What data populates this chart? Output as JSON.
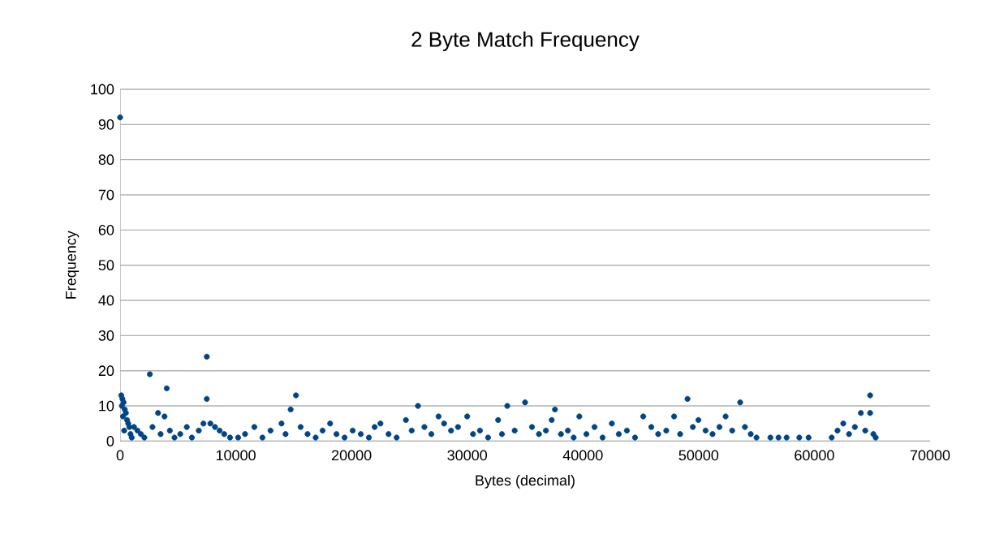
{
  "chart_data": {
    "type": "scatter",
    "title": "2 Byte Match Frequency",
    "xlabel": "Bytes (decimal)",
    "ylabel": "Frequency",
    "xlim": [
      0,
      70000
    ],
    "xticks": [
      0,
      10000,
      20000,
      30000,
      40000,
      50000,
      60000,
      70000
    ],
    "ylim": [
      0,
      100
    ],
    "yticks": [
      0,
      10,
      20,
      30,
      40,
      50,
      60,
      70,
      80,
      90,
      100
    ],
    "grid": "y",
    "marker": "circle",
    "series": [
      {
        "color": "#004586",
        "x": [
          0,
          100,
          200,
          300,
          150,
          400,
          500,
          250,
          600,
          700,
          800,
          350,
          900,
          1000,
          1200,
          1500,
          1800,
          2100,
          2570,
          2800,
          3280,
          3840,
          4030,
          3500,
          4300,
          4700,
          5200,
          5760,
          6200,
          6800,
          7200,
          7490,
          7490,
          7800,
          8200,
          8600,
          9000,
          9500,
          10200,
          10800,
          11600,
          12300,
          13000,
          13950,
          14300,
          14740,
          15200,
          15600,
          16200,
          16900,
          17500,
          18150,
          18700,
          19400,
          20100,
          20800,
          21500,
          22000,
          22500,
          23200,
          23900,
          24700,
          25200,
          25740,
          26300,
          26900,
          27520,
          28000,
          28600,
          29200,
          30000,
          30500,
          31100,
          31800,
          32670,
          33000,
          33460,
          34100,
          35000,
          35600,
          36200,
          36800,
          37300,
          37580,
          38100,
          38700,
          39200,
          39690,
          40300,
          41000,
          41700,
          42500,
          43100,
          43800,
          44500,
          45210,
          45910,
          46500,
          47200,
          47880,
          48400,
          49040,
          49500,
          49980,
          50600,
          51200,
          51800,
          52330,
          52900,
          53590,
          54000,
          54500,
          55000,
          56200,
          56900,
          57600,
          58700,
          59500,
          61500,
          62000,
          62500,
          63000,
          63500,
          64020,
          64400,
          64820,
          64820,
          65100,
          65300
        ],
        "values": [
          92,
          13,
          12,
          11,
          10,
          9,
          8,
          7,
          6,
          5,
          4,
          3,
          2,
          1,
          4,
          3,
          2,
          1,
          19,
          4,
          8,
          7,
          15,
          2,
          3,
          1,
          2,
          4,
          1,
          3,
          5,
          24,
          12,
          5,
          4,
          3,
          2,
          1,
          1,
          2,
          4,
          1,
          3,
          5,
          2,
          9,
          13,
          4,
          2,
          1,
          3,
          5,
          2,
          1,
          3,
          2,
          1,
          4,
          5,
          2,
          1,
          6,
          3,
          10,
          4,
          2,
          7,
          5,
          3,
          4,
          7,
          2,
          3,
          1,
          6,
          2,
          10,
          3,
          11,
          4,
          2,
          3,
          6,
          9,
          2,
          3,
          1,
          7,
          2,
          4,
          1,
          5,
          2,
          3,
          1,
          7,
          4,
          2,
          3,
          7,
          2,
          12,
          4,
          6,
          3,
          2,
          4,
          7,
          3,
          11,
          4,
          2,
          1,
          1,
          1,
          1,
          1,
          1,
          1,
          3,
          5,
          2,
          4,
          8,
          3,
          13,
          8,
          2,
          1
        ]
      }
    ]
  }
}
